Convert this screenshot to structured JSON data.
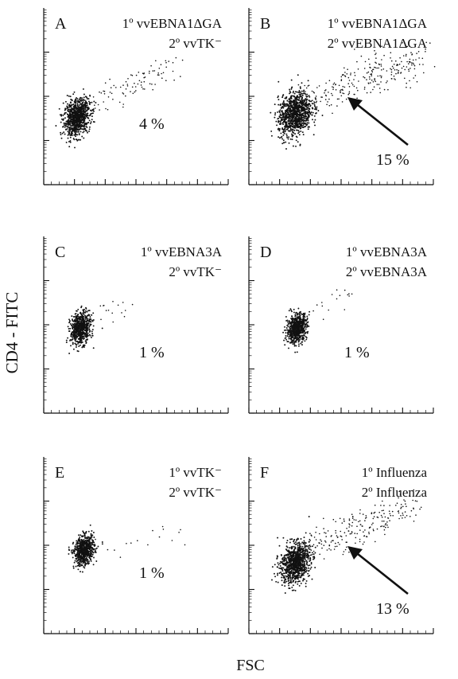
{
  "figure": {
    "ylabel": "CD4 - FITC",
    "xlabel": "FSC"
  },
  "chart_data": [
    {
      "type": "scatter",
      "panel": "A",
      "line1": "1º vvEBNA1ΔGA",
      "line2": "2º vvTK⁻",
      "annotation": "4 %",
      "arrow": false,
      "population": {
        "core": [
          0.18,
          0.38
        ],
        "spread": [
          0.07,
          0.1
        ],
        "n": 900
      },
      "tail": {
        "from": [
          0.25,
          0.45
        ],
        "to": [
          0.75,
          0.68
        ],
        "n": 90
      }
    },
    {
      "type": "scatter",
      "panel": "B",
      "line1": "1º vvEBNA1ΔGA",
      "line2": "2º vvEBNA1ΔGA",
      "annotation": "15 %",
      "arrow": true,
      "population": {
        "core": [
          0.25,
          0.4
        ],
        "spread": [
          0.09,
          0.12
        ],
        "n": 1000
      },
      "tail": {
        "from": [
          0.3,
          0.48
        ],
        "to": [
          0.95,
          0.72
        ],
        "n": 260
      }
    },
    {
      "type": "scatter",
      "panel": "C",
      "line1": "1º vvEBNA3A",
      "line2": "2º vvTK⁻",
      "annotation": "1 %",
      "arrow": false,
      "population": {
        "core": [
          0.2,
          0.48
        ],
        "spread": [
          0.055,
          0.09
        ],
        "n": 650
      },
      "tail": {
        "from": [
          0.28,
          0.55
        ],
        "to": [
          0.5,
          0.62
        ],
        "n": 16
      }
    },
    {
      "type": "scatter",
      "panel": "D",
      "line1": "1º vvEBNA3A",
      "line2": "2º vvEBNA3A",
      "annotation": "1 %",
      "arrow": false,
      "population": {
        "core": [
          0.26,
          0.48
        ],
        "spread": [
          0.055,
          0.08
        ],
        "n": 650
      },
      "tail": {
        "from": [
          0.32,
          0.56
        ],
        "to": [
          0.6,
          0.7
        ],
        "n": 16
      }
    },
    {
      "type": "scatter",
      "panel": "E",
      "line1": "1º vvTK⁻",
      "line2": "2º vvTK⁻",
      "annotation": "1 %",
      "arrow": false,
      "population": {
        "core": [
          0.22,
          0.47
        ],
        "spread": [
          0.055,
          0.08
        ],
        "n": 650
      },
      "tail": {
        "from": [
          0.3,
          0.45
        ],
        "to": [
          0.78,
          0.6
        ],
        "n": 16
      }
    },
    {
      "type": "scatter",
      "panel": "F",
      "line1": "1º Influenza",
      "line2": "2º Influenza",
      "annotation": "13 %",
      "arrow": true,
      "population": {
        "core": [
          0.25,
          0.4
        ],
        "spread": [
          0.08,
          0.11
        ],
        "n": 950
      },
      "tail": {
        "from": [
          0.32,
          0.5
        ],
        "to": [
          0.9,
          0.72
        ],
        "n": 220
      }
    }
  ]
}
